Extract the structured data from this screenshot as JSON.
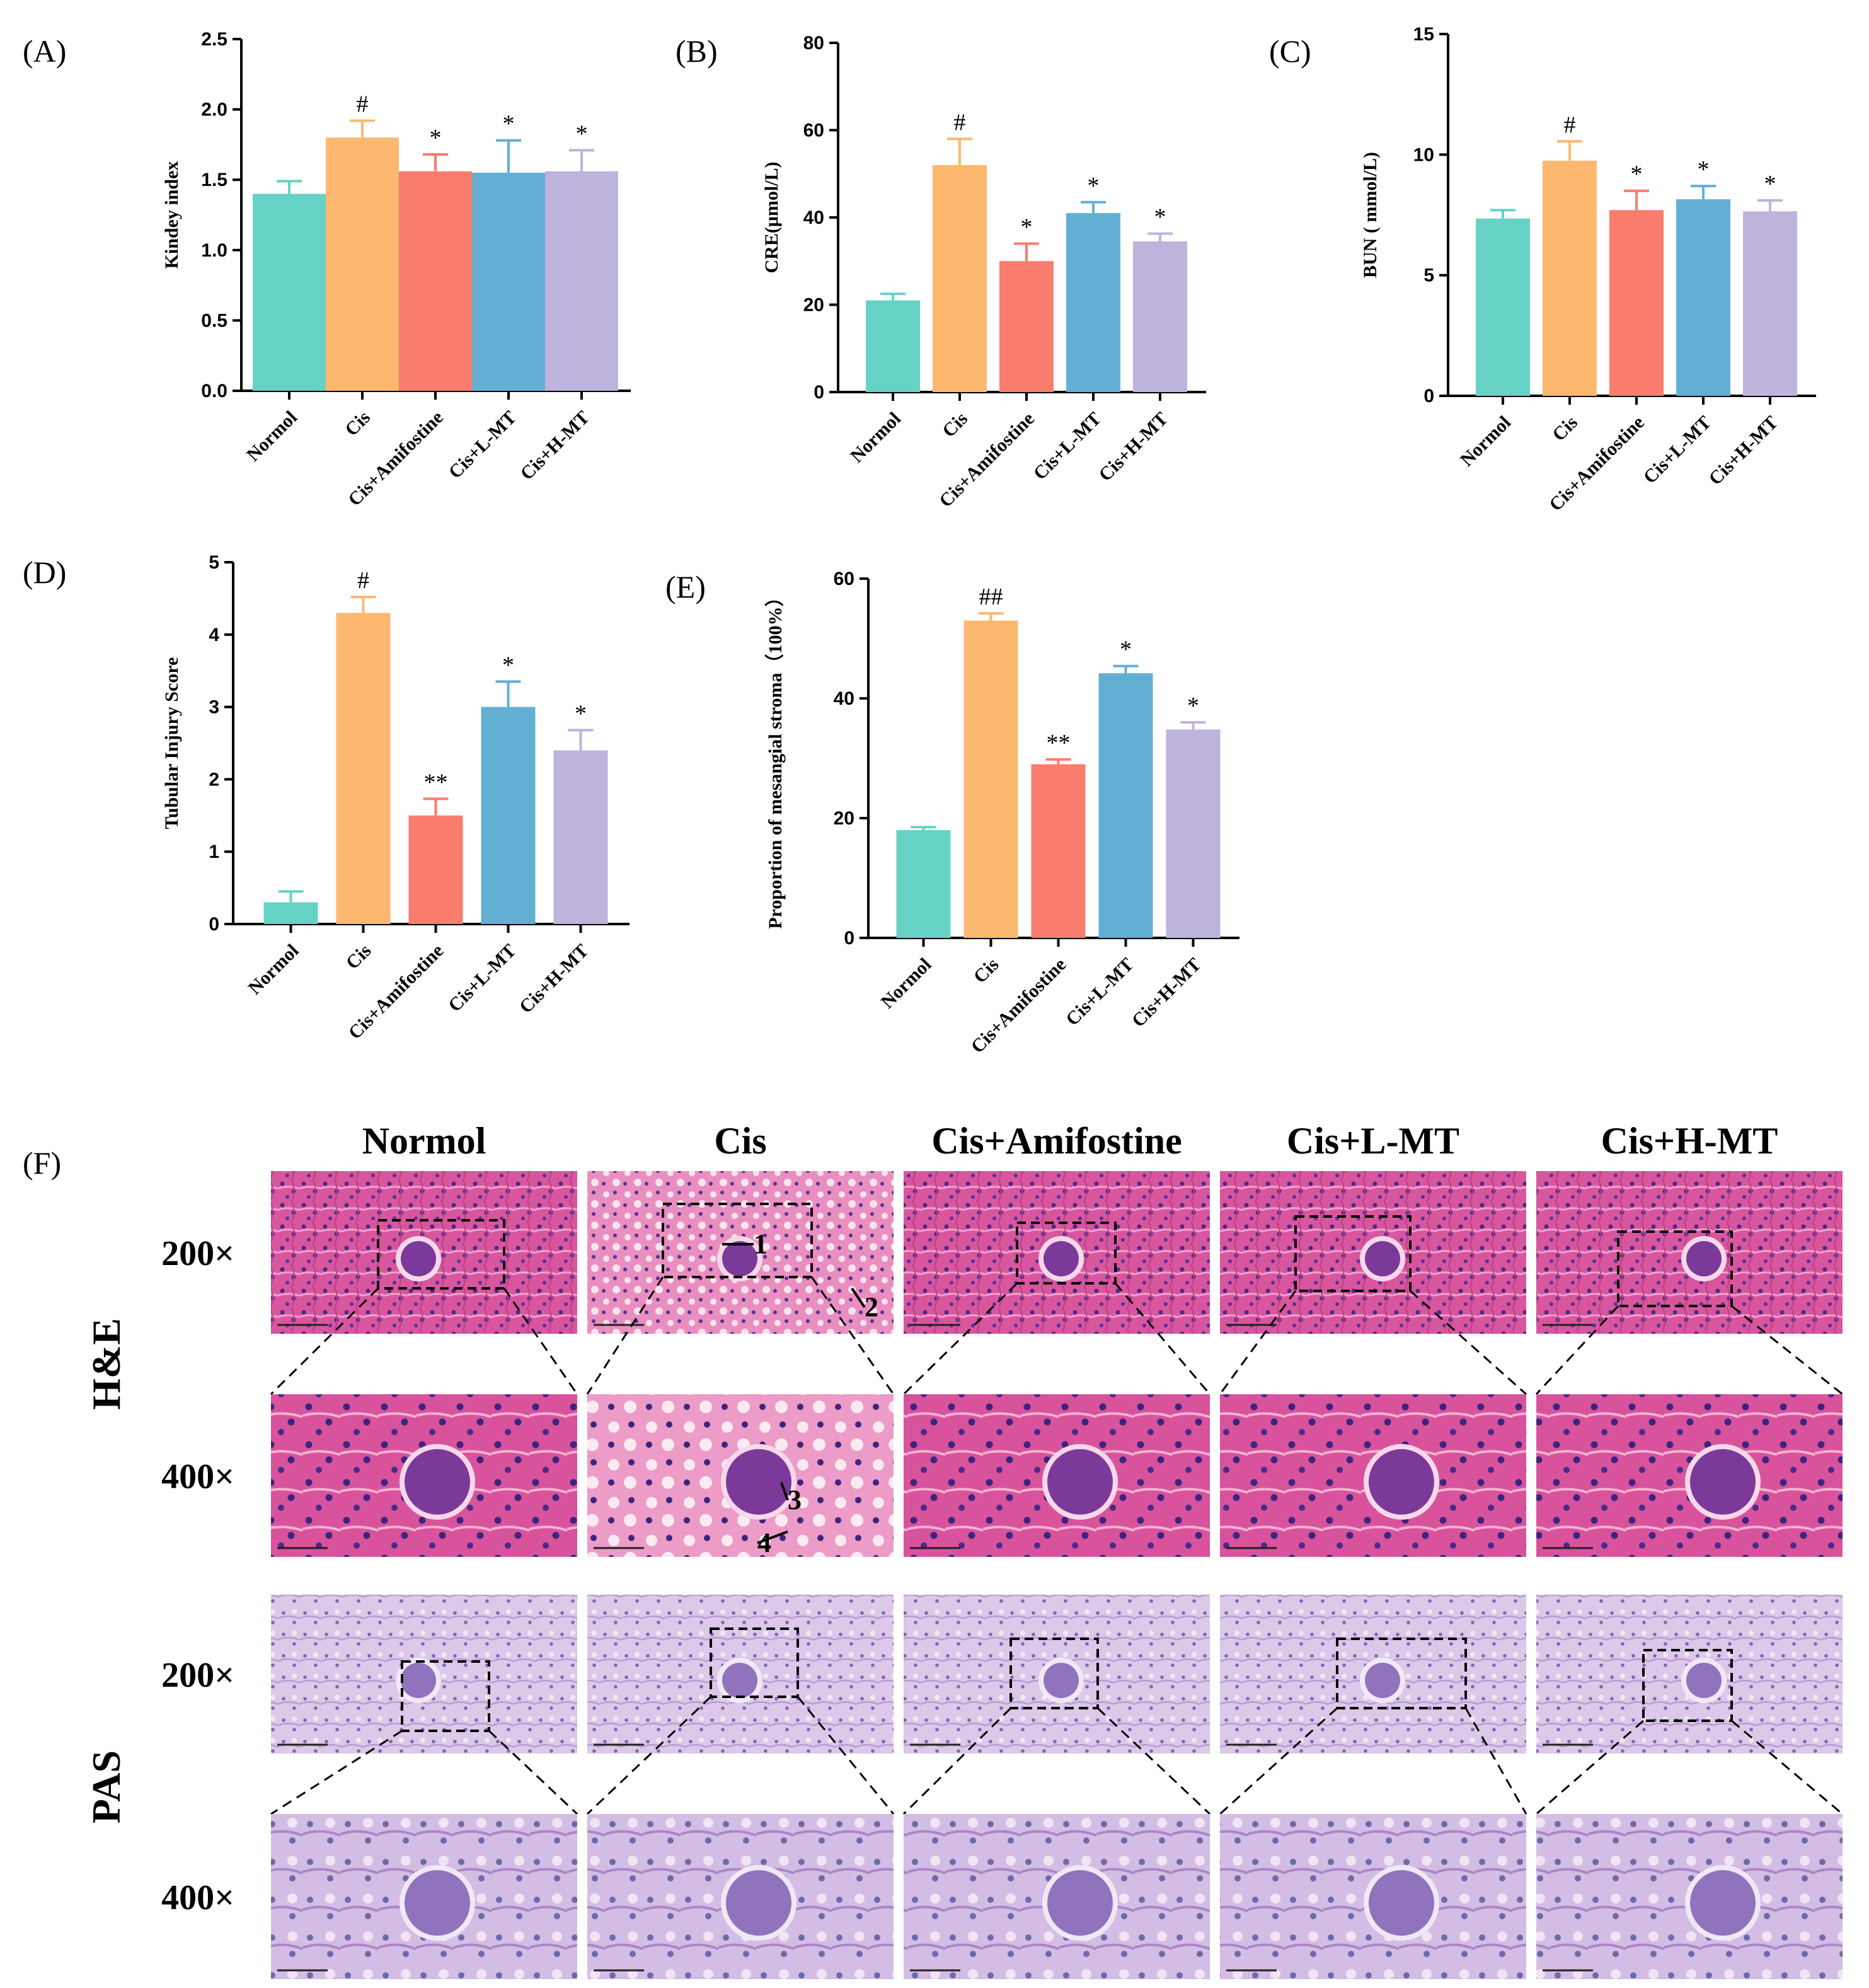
{
  "chart_data": [
    {
      "panel": "(A)",
      "type": "bar",
      "title": "",
      "xlabel": "",
      "ylabel": "Kindey index",
      "categories": [
        "Normol",
        "Cis",
        "Cis+Amifostine",
        "Cis+L-MT",
        "Cis+H-MT"
      ],
      "values": [
        1.4,
        1.8,
        1.56,
        1.55,
        1.56
      ],
      "errors": [
        0.09,
        0.12,
        0.12,
        0.23,
        0.15
      ],
      "significance": [
        "",
        "#",
        "*",
        "*",
        "*"
      ],
      "ylim": [
        0,
        2.5
      ],
      "yticks": [
        0.0,
        0.5,
        1.0,
        1.5,
        2.0,
        2.5
      ],
      "ytick_labels": [
        "0.0",
        "0.5",
        "1.0",
        "1.5",
        "2.0",
        "2.5"
      ]
    },
    {
      "panel": "(B)",
      "type": "bar",
      "title": "",
      "xlabel": "",
      "ylabel": "CRE(μmol/L)",
      "categories": [
        "Normol",
        "Cis",
        "Cis+Amifostine",
        "Cis+L-MT",
        "Cis+H-MT"
      ],
      "values": [
        21,
        52,
        30,
        41,
        34.5
      ],
      "errors": [
        1.5,
        6,
        4,
        2.5,
        1.8
      ],
      "significance": [
        "",
        "#",
        "*",
        "*",
        "*"
      ],
      "ylim": [
        0,
        80
      ],
      "yticks": [
        0,
        20,
        40,
        60,
        80
      ],
      "ytick_labels": [
        "0",
        "20",
        "40",
        "60",
        "80"
      ]
    },
    {
      "panel": "(C)",
      "type": "bar",
      "title": "",
      "xlabel": "",
      "ylabel": "BUN ( mmol/L)",
      "categories": [
        "Normol",
        "Cis",
        "Cis+Amifostine",
        "Cis+L-MT",
        "Cis+H-MT"
      ],
      "values": [
        7.35,
        9.75,
        7.7,
        8.15,
        7.65
      ],
      "errors": [
        0.35,
        0.8,
        0.8,
        0.55,
        0.45
      ],
      "significance": [
        "",
        "#",
        "*",
        "*",
        "*"
      ],
      "ylim": [
        0,
        15
      ],
      "yticks": [
        0,
        5,
        10,
        15
      ],
      "ytick_labels": [
        "0",
        "5",
        "10",
        "15"
      ]
    },
    {
      "panel": "(D)",
      "type": "bar",
      "title": "",
      "xlabel": "",
      "ylabel": "Tubular Injury Score",
      "categories": [
        "Normol",
        "Cis",
        "Cis+Amifostine",
        "Cis+L-MT",
        "Cis+H-MT"
      ],
      "values": [
        0.3,
        4.3,
        1.5,
        3.0,
        2.4
      ],
      "errors": [
        0.15,
        0.22,
        0.23,
        0.35,
        0.28
      ],
      "significance": [
        "",
        "#",
        "**",
        "*",
        "*"
      ],
      "ylim": [
        0,
        5
      ],
      "yticks": [
        0,
        1,
        2,
        3,
        4,
        5
      ],
      "ytick_labels": [
        "0",
        "1",
        "2",
        "3",
        "4",
        "5"
      ]
    },
    {
      "panel": "(E)",
      "type": "bar",
      "title": "",
      "xlabel": "",
      "ylabel": "Proportion of mesangial stroma（100%）",
      "categories": [
        "Normol",
        "Cis",
        "Cis+Amifostine",
        "Cis+L-MT",
        "Cis+H-MT"
      ],
      "values": [
        18,
        53,
        29,
        44.2,
        34.8
      ],
      "errors": [
        0.5,
        1.2,
        0.8,
        1.2,
        1.2
      ],
      "significance": [
        "",
        "##",
        "**",
        "*",
        "*"
      ],
      "ylim": [
        0,
        60
      ],
      "yticks": [
        0,
        20,
        40,
        60
      ],
      "ytick_labels": [
        "0",
        "20",
        "40",
        "60"
      ]
    }
  ],
  "colors": {
    "Normol": "#66d2c6",
    "Cis": "#fdb86f",
    "Cis+Amifostine": "#f97c6d",
    "Cis+L-MT": "#63afd3",
    "Cis+H-MT": "#bdb3dd"
  },
  "histology": {
    "panel_letter": "(F)",
    "columns": [
      "Normol",
      "Cis",
      "Cis+Amifostine",
      "Cis+L-MT",
      "Cis+H-MT"
    ],
    "rows": [
      {
        "stain": "H&E",
        "mag": "200×"
      },
      {
        "stain": "H&E",
        "mag": "400×"
      },
      {
        "stain": "PAS",
        "mag": "200×"
      },
      {
        "stain": "PAS",
        "mag": "400×"
      }
    ],
    "stains": [
      "H&E",
      "PAS"
    ],
    "annotations": [
      "1",
      "2",
      "3",
      "4"
    ],
    "stain_colors": {
      "he": "#d8569e",
      "he_dark": "#9a2f7e",
      "pas": "#d9c3e6",
      "pas_dark": "#a27ec4"
    }
  }
}
